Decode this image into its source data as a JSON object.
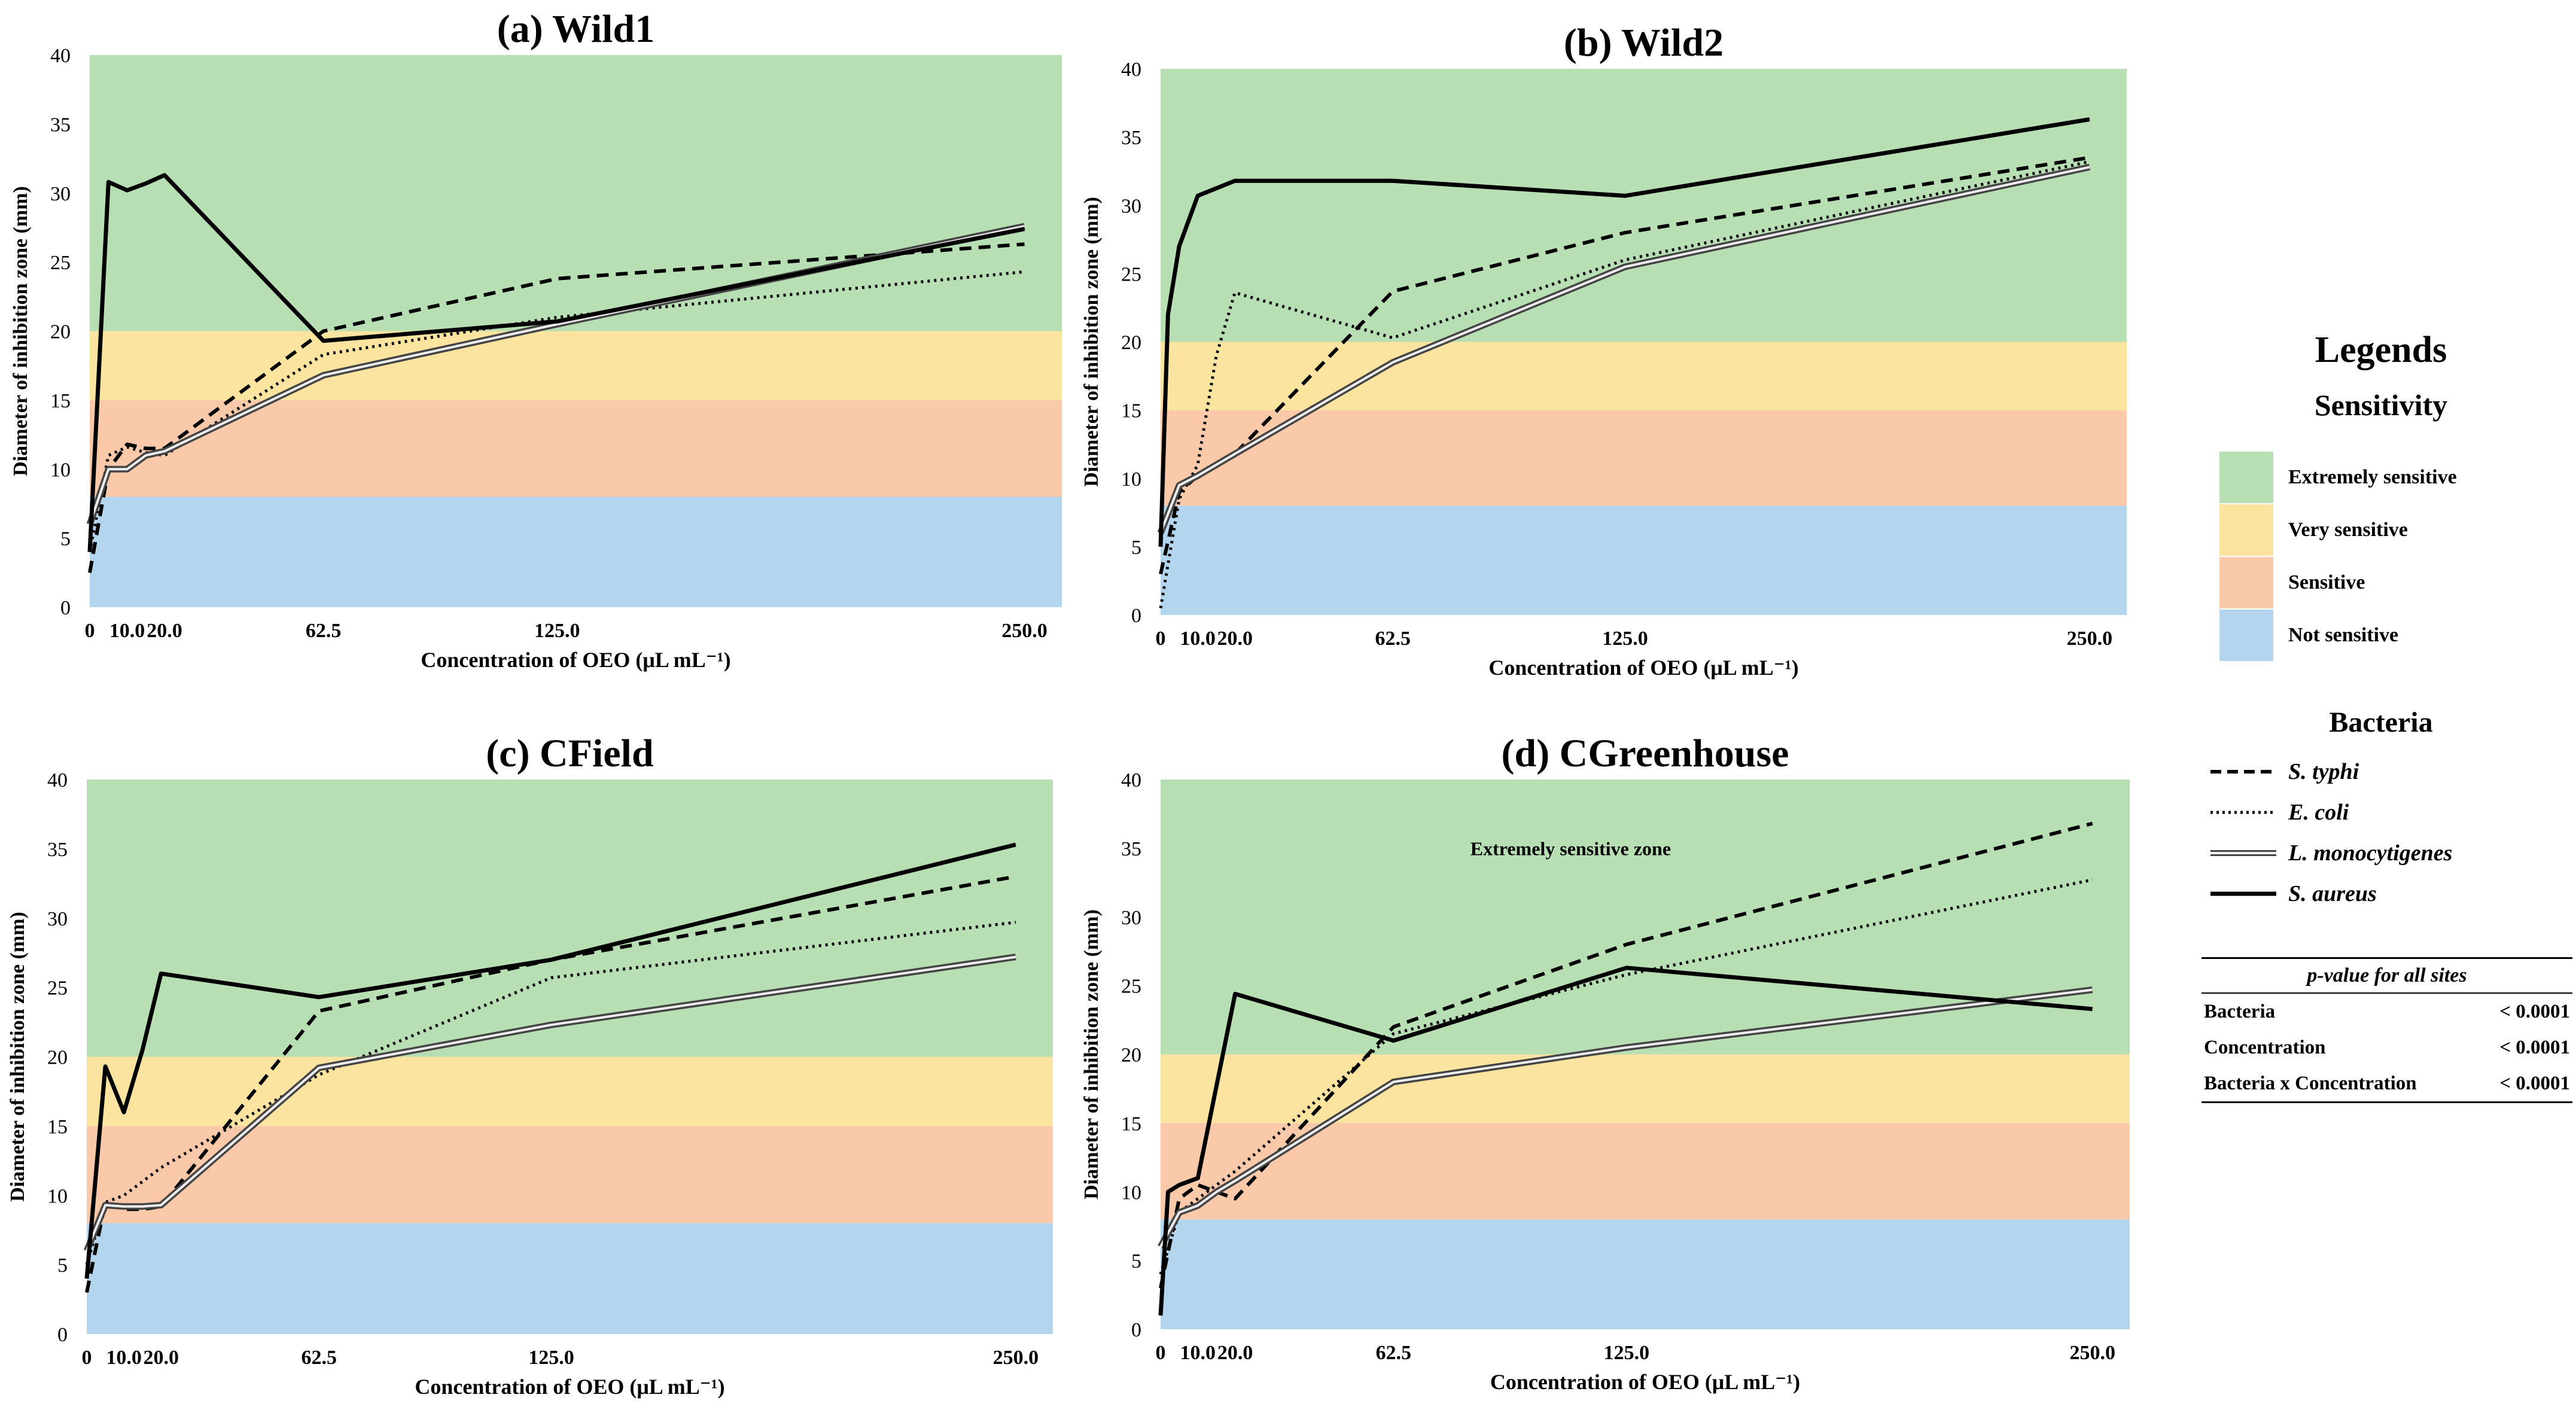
{
  "colors": {
    "extreme": "#b8dfb4",
    "very": "#fbe4a0",
    "sensitive": "#f9c9aa",
    "not": "#b3d5ee"
  },
  "chart_data": [
    {
      "type": "line",
      "title": "(a) Wild1",
      "xlabel": "Concentration of OEO (μL mL⁻¹)",
      "ylabel": "Diameter of inhibition zone (mm)",
      "xlim": [
        0,
        260
      ],
      "ylim": [
        0,
        40
      ],
      "xticks": [
        0,
        10,
        20,
        62.5,
        125,
        250
      ],
      "xtick_labels": [
        "0",
        "10.0",
        "20.0",
        "62.5",
        "125.0",
        "250.0"
      ],
      "yticks": [
        0,
        5,
        10,
        15,
        20,
        25,
        30,
        35,
        40
      ],
      "bands": [
        {
          "from": 0,
          "to": 8,
          "zone": "not"
        },
        {
          "from": 8,
          "to": 15,
          "zone": "sensitive"
        },
        {
          "from": 15,
          "to": 20,
          "zone": "very"
        },
        {
          "from": 20,
          "to": 40,
          "zone": "extreme"
        }
      ],
      "annotation": "",
      "series": [
        {
          "name": "S. typhi",
          "style": "dashed",
          "x": [
            0,
            5,
            10,
            15,
            20,
            62.5,
            125,
            250
          ],
          "y": [
            2.5,
            10,
            11.8,
            11.5,
            11.5,
            20,
            23.8,
            26.3
          ]
        },
        {
          "name": "E. coli",
          "style": "dotted",
          "x": [
            0,
            5,
            10,
            15,
            20,
            62.5,
            125,
            250
          ],
          "y": [
            4,
            11,
            11.6,
            11.2,
            11,
            18.3,
            21,
            24.3
          ]
        },
        {
          "name": "L. monocytigenes",
          "style": "double",
          "x": [
            0,
            5,
            10,
            15,
            20,
            62.5,
            125,
            250
          ],
          "y": [
            6,
            10,
            10,
            11,
            11.3,
            16.8,
            20.5,
            27.6
          ]
        },
        {
          "name": "S. aureus",
          "style": "solid",
          "x": [
            0,
            5,
            10,
            15,
            20,
            62.5,
            125,
            250
          ],
          "y": [
            4,
            30.8,
            30.2,
            30.7,
            31.3,
            19.3,
            20.7,
            27.4
          ]
        }
      ]
    },
    {
      "type": "line",
      "title": "(b) Wild2",
      "xlabel": "Concentration of OEO (μL mL⁻¹)",
      "ylabel": "Diameter of inhibition zone (mm)",
      "xlim": [
        0,
        260
      ],
      "ylim": [
        0,
        40
      ],
      "xticks": [
        0,
        10,
        20,
        62.5,
        125,
        250
      ],
      "xtick_labels": [
        "0",
        "10.0",
        "20.0",
        "62.5",
        "125.0",
        "250.0"
      ],
      "yticks": [
        0,
        5,
        10,
        15,
        20,
        25,
        30,
        35,
        40
      ],
      "bands": [
        {
          "from": 0,
          "to": 8,
          "zone": "not"
        },
        {
          "from": 8,
          "to": 15,
          "zone": "sensitive"
        },
        {
          "from": 15,
          "to": 20,
          "zone": "very"
        },
        {
          "from": 20,
          "to": 40,
          "zone": "extreme"
        }
      ],
      "annotation": "",
      "series": [
        {
          "name": "S. typhi",
          "style": "dashed",
          "x": [
            0,
            5,
            10,
            15,
            20,
            62.5,
            125,
            250
          ],
          "y": [
            3,
            9,
            10.2,
            11,
            11.8,
            23.7,
            28,
            33.5
          ]
        },
        {
          "name": "E. coli",
          "style": "dotted",
          "x": [
            0,
            5,
            10,
            15,
            20,
            62.5,
            125,
            250
          ],
          "y": [
            0.5,
            8.5,
            11,
            19,
            23.6,
            20.3,
            26,
            33.2
          ]
        },
        {
          "name": "L. monocytigenes",
          "style": "double",
          "x": [
            0,
            5,
            10,
            15,
            20,
            62.5,
            125,
            250
          ],
          "y": [
            6,
            9.5,
            10.2,
            11,
            11.8,
            18.5,
            25.5,
            32.8
          ]
        },
        {
          "name": "S. aureus",
          "style": "solid",
          "x": [
            0,
            2,
            5,
            10,
            20,
            62.5,
            125,
            250
          ],
          "y": [
            5,
            22,
            27,
            30.7,
            31.8,
            31.8,
            30.7,
            36.3
          ]
        }
      ]
    },
    {
      "type": "line",
      "title": "(c) CField",
      "xlabel": "Concentration of OEO (μL mL⁻¹)",
      "ylabel": "Diameter of inhibition zone (mm)",
      "xlim": [
        0,
        260
      ],
      "ylim": [
        0,
        40
      ],
      "xticks": [
        0,
        10,
        20,
        62.5,
        125,
        250
      ],
      "xtick_labels": [
        "0",
        "10.0",
        "20.0",
        "62.5",
        "125.0",
        "250.0"
      ],
      "yticks": [
        0,
        5,
        10,
        15,
        20,
        25,
        30,
        35,
        40
      ],
      "bands": [
        {
          "from": 0,
          "to": 8,
          "zone": "not"
        },
        {
          "from": 8,
          "to": 15,
          "zone": "sensitive"
        },
        {
          "from": 15,
          "to": 20,
          "zone": "very"
        },
        {
          "from": 20,
          "to": 40,
          "zone": "extreme"
        }
      ],
      "annotation": "",
      "series": [
        {
          "name": "S. typhi",
          "style": "dashed",
          "x": [
            0,
            5,
            10,
            15,
            20,
            62.5,
            125,
            250
          ],
          "y": [
            3,
            9.5,
            9,
            9,
            9.2,
            23.3,
            27,
            33
          ]
        },
        {
          "name": "E. coli",
          "style": "dotted",
          "x": [
            0,
            5,
            10,
            15,
            20,
            62.5,
            125,
            250
          ],
          "y": [
            5,
            9.5,
            10,
            11,
            12,
            18.7,
            25.7,
            29.7
          ]
        },
        {
          "name": "L. monocytigenes",
          "style": "double",
          "x": [
            0,
            5,
            10,
            15,
            20,
            62.5,
            125,
            250
          ],
          "y": [
            6,
            9.3,
            9.2,
            9.2,
            9.3,
            19.2,
            22.3,
            27.2
          ]
        },
        {
          "name": "S. aureus",
          "style": "solid",
          "x": [
            0,
            5,
            10,
            15,
            20,
            62.5,
            125,
            250
          ],
          "y": [
            4,
            19.3,
            16,
            20.5,
            26,
            24.3,
            27,
            35.3
          ]
        }
      ]
    },
    {
      "type": "line",
      "title": "(d) CGreenhouse",
      "xlabel": "Concentration of OEO (μL mL⁻¹)",
      "ylabel": "Diameter of inhibition zone (mm)",
      "xlim": [
        0,
        260
      ],
      "ylim": [
        0,
        40
      ],
      "xticks": [
        0,
        10,
        20,
        62.5,
        125,
        250
      ],
      "xtick_labels": [
        "0",
        "10.0",
        "20.0",
        "62.5",
        "125.0",
        "250.0"
      ],
      "yticks": [
        0,
        5,
        10,
        15,
        20,
        25,
        30,
        35,
        40
      ],
      "bands": [
        {
          "from": 0,
          "to": 8,
          "zone": "not"
        },
        {
          "from": 8,
          "to": 15,
          "zone": "sensitive"
        },
        {
          "from": 15,
          "to": 20,
          "zone": "very"
        },
        {
          "from": 20,
          "to": 40,
          "zone": "extreme"
        }
      ],
      "annotation": "Extremely sensitive zone",
      "series": [
        {
          "name": "S. typhi",
          "style": "dashed",
          "x": [
            0,
            5,
            10,
            15,
            20,
            62.5,
            125,
            250
          ],
          "y": [
            3,
            9.5,
            10.5,
            10,
            9.5,
            22,
            28,
            36.8
          ]
        },
        {
          "name": "E. coli",
          "style": "dotted",
          "x": [
            0,
            5,
            10,
            15,
            20,
            62.5,
            125,
            250
          ],
          "y": [
            4,
            8.5,
            9.5,
            10.5,
            11.5,
            21.5,
            25.8,
            32.7
          ]
        },
        {
          "name": "L. monocytigenes",
          "style": "double",
          "x": [
            0,
            5,
            10,
            15,
            20,
            62.5,
            125,
            250
          ],
          "y": [
            6,
            8.5,
            9,
            10,
            10.8,
            18,
            20.5,
            24.7
          ]
        },
        {
          "name": "S. aureus",
          "style": "solid",
          "x": [
            0,
            2,
            5,
            10,
            20,
            62.5,
            125,
            250
          ],
          "y": [
            1,
            10,
            10.5,
            11,
            24.4,
            21,
            26.3,
            23.3
          ]
        }
      ]
    }
  ],
  "legend": {
    "title": "Legends",
    "sensitivity_title": "Sensitivity",
    "sensitivity": [
      {
        "label": "Extremely sensitive",
        "color": "#b8dfb4"
      },
      {
        "label": "Very sensitive",
        "color": "#fbe4a0"
      },
      {
        "label": "Sensitive",
        "color": "#f9c9aa"
      },
      {
        "label": "Not sensitive",
        "color": "#b3d5ee"
      }
    ],
    "bacteria_title": "Bacteria",
    "bacteria": [
      {
        "label": "S. typhi",
        "style": "dashed"
      },
      {
        "label": "E. coli",
        "style": "dotted"
      },
      {
        "label": "L. monocytigenes",
        "style": "double"
      },
      {
        "label": "S. aureus",
        "style": "solid"
      }
    ]
  },
  "pvalue_table": {
    "header": "p-value  for all sites",
    "rows": [
      {
        "label": "Bacteria",
        "value": "< 0.0001"
      },
      {
        "label": "Concentration",
        "value": "< 0.0001"
      },
      {
        "label": "Bacteria x Concentration",
        "value": "< 0.0001"
      }
    ]
  }
}
